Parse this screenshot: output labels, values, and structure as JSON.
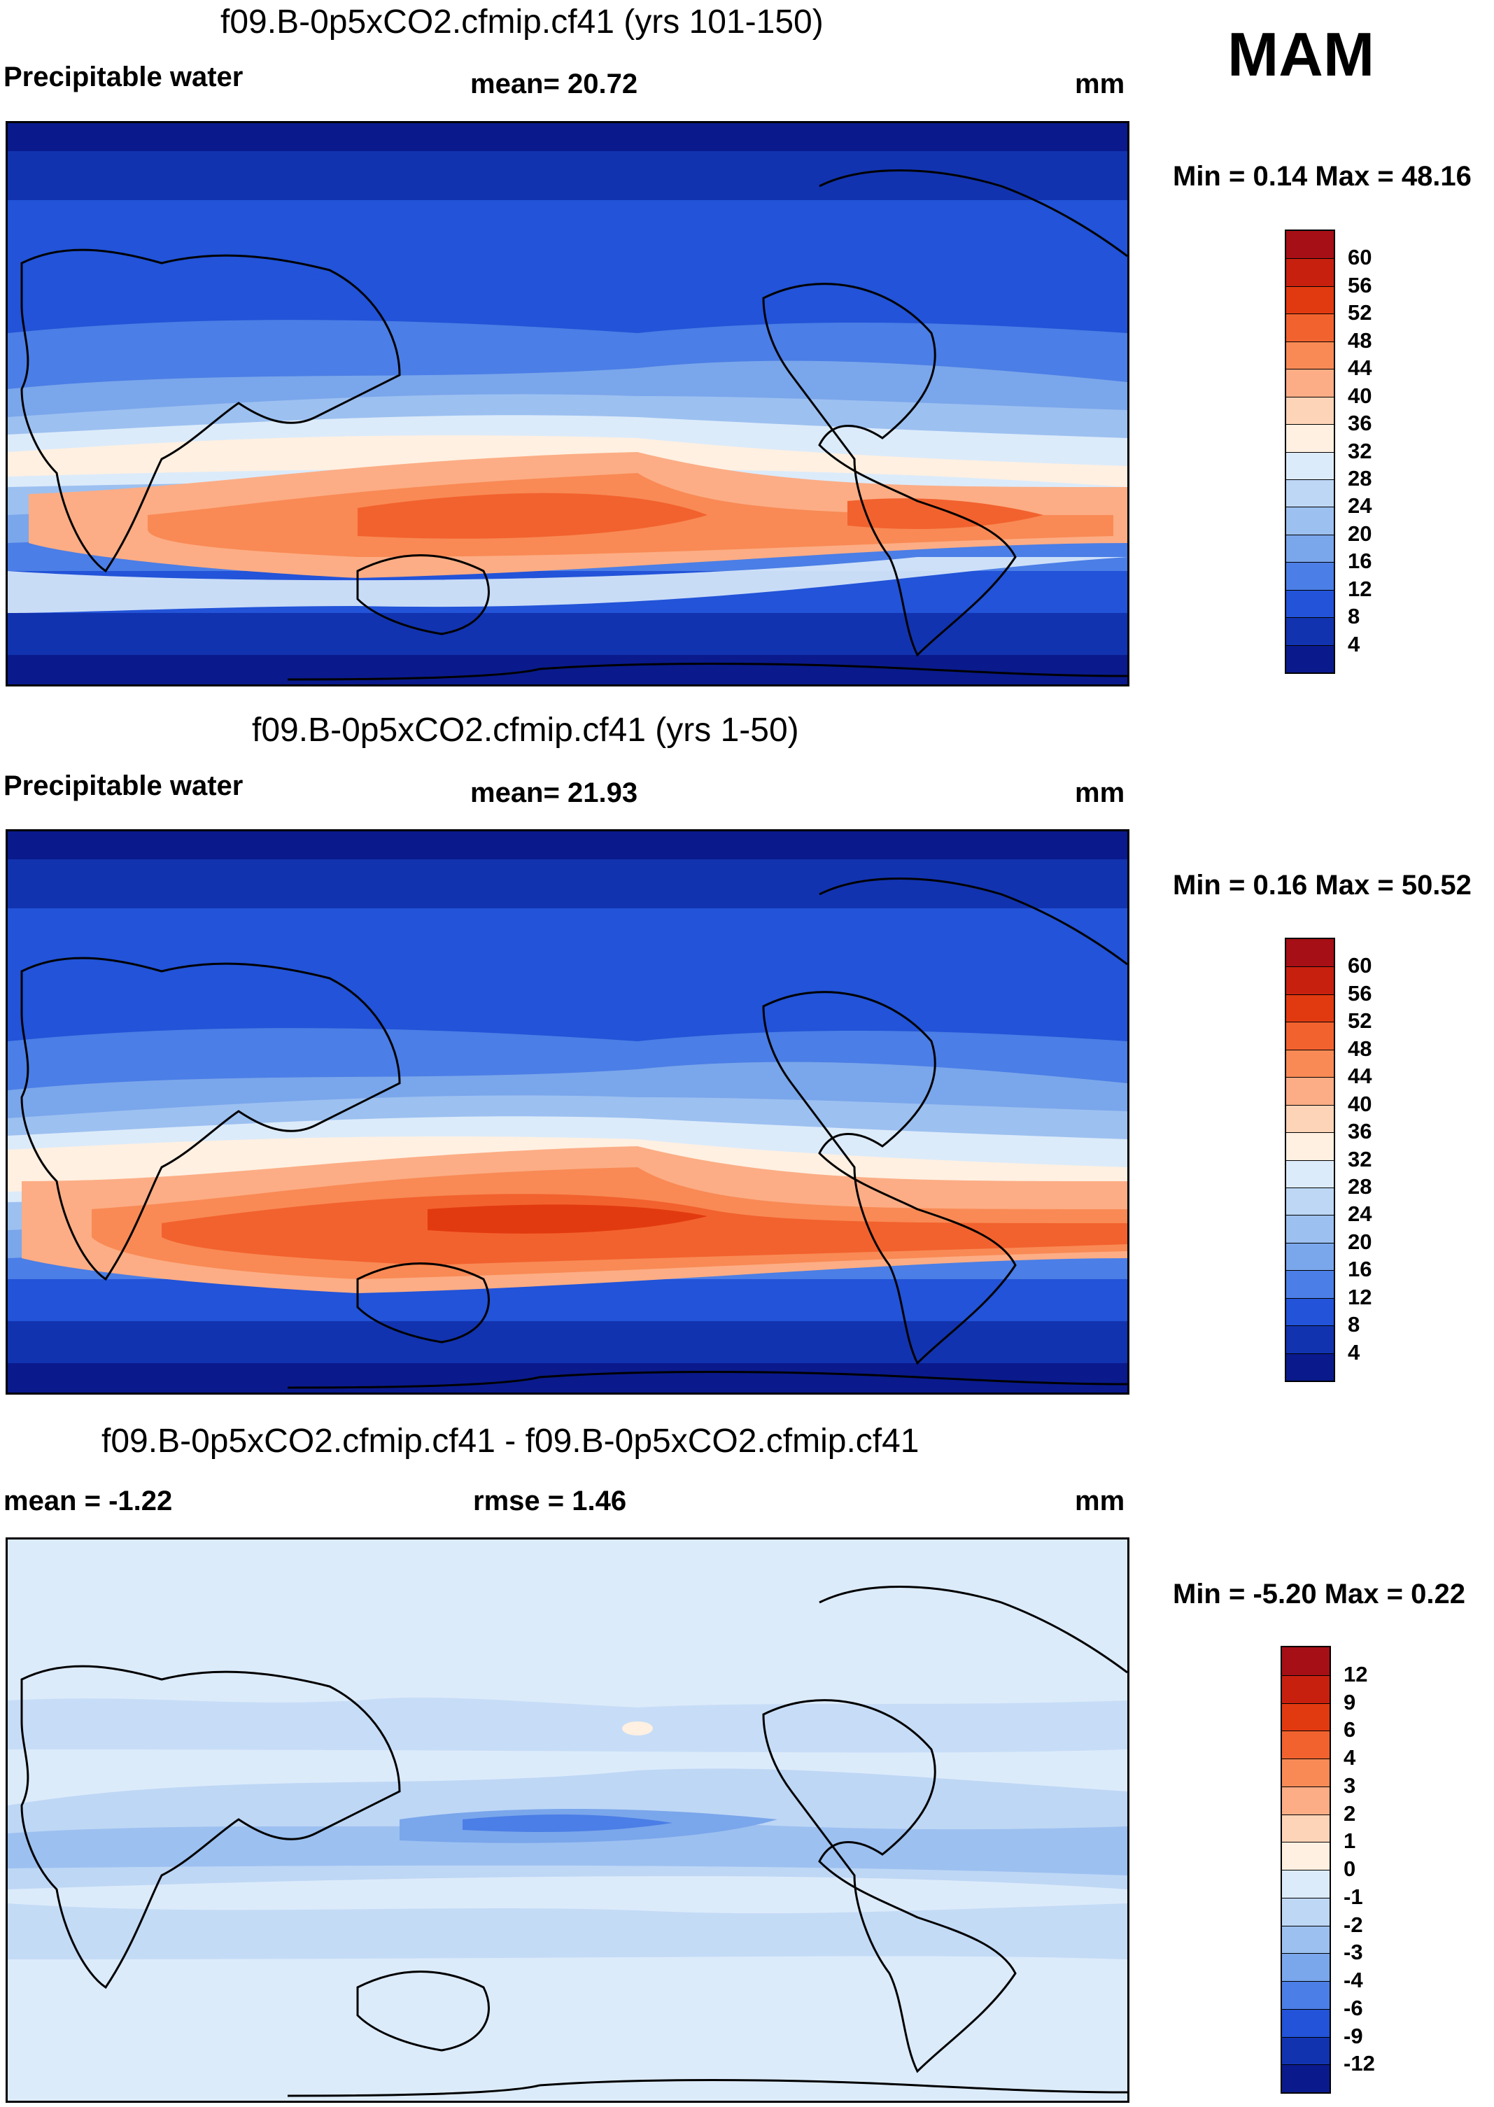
{
  "season": "MAM",
  "panels": [
    {
      "id": "top",
      "title": "f09.B-0p5xCO2.cfmip.cf41 (yrs 101-150)",
      "left_label": "Precipitable water",
      "center_label": "mean=  20.72",
      "units": "mm",
      "minmax": "Min =   0.14 Max =  48.16",
      "colorbar": {
        "labels": [
          "60",
          "56",
          "52",
          "48",
          "44",
          "40",
          "36",
          "32",
          "28",
          "24",
          "20",
          "16",
          "12",
          "8",
          "4"
        ],
        "colors": [
          "#A50F15",
          "#C8200F",
          "#E23A10",
          "#F2622E",
          "#F98A55",
          "#FCAD85",
          "#FDD4B8",
          "#FFF0E1",
          "#DCEBFA",
          "#BED7F5",
          "#9CC0F0",
          "#7AA6EB",
          "#4B7EE6",
          "#2253D8",
          "#1233AF",
          "#0A1A8C"
        ]
      }
    },
    {
      "id": "middle",
      "title": "f09.B-0p5xCO2.cfmip.cf41 (yrs 1-50)",
      "left_label": "Precipitable water",
      "center_label": "mean=  21.93",
      "units": "mm",
      "minmax": "Min =   0.16 Max =  50.52",
      "colorbar": {
        "labels": [
          "60",
          "56",
          "52",
          "48",
          "44",
          "40",
          "36",
          "32",
          "28",
          "24",
          "20",
          "16",
          "12",
          "8",
          "4"
        ],
        "colors": [
          "#A50F15",
          "#C8200F",
          "#E23A10",
          "#F2622E",
          "#F98A55",
          "#FCAD85",
          "#FDD4B8",
          "#FFF0E1",
          "#DCEBFA",
          "#BED7F5",
          "#9CC0F0",
          "#7AA6EB",
          "#4B7EE6",
          "#2253D8",
          "#1233AF",
          "#0A1A8C"
        ]
      }
    },
    {
      "id": "bottom",
      "title": "f09.B-0p5xCO2.cfmip.cf41 - f09.B-0p5xCO2.cfmip.cf41",
      "left_label": "mean =  -1.22",
      "center_label": "rmse =   1.46",
      "units": "mm",
      "minmax": "Min =  -5.20 Max =   0.22",
      "colorbar": {
        "labels": [
          "12",
          "9",
          "6",
          "4",
          "3",
          "2",
          "1",
          "0",
          "-1",
          "-2",
          "-3",
          "-4",
          "-6",
          "-9",
          "-12"
        ],
        "colors": [
          "#A50F15",
          "#C8200F",
          "#E23A10",
          "#F2622E",
          "#F98A55",
          "#FCAD85",
          "#FDD4B8",
          "#FFF0E1",
          "#DCEBFA",
          "#BED7F5",
          "#9CC0F0",
          "#7AA6EB",
          "#4B7EE6",
          "#2253D8",
          "#1233AF",
          "#0A1A8C"
        ]
      }
    }
  ]
}
